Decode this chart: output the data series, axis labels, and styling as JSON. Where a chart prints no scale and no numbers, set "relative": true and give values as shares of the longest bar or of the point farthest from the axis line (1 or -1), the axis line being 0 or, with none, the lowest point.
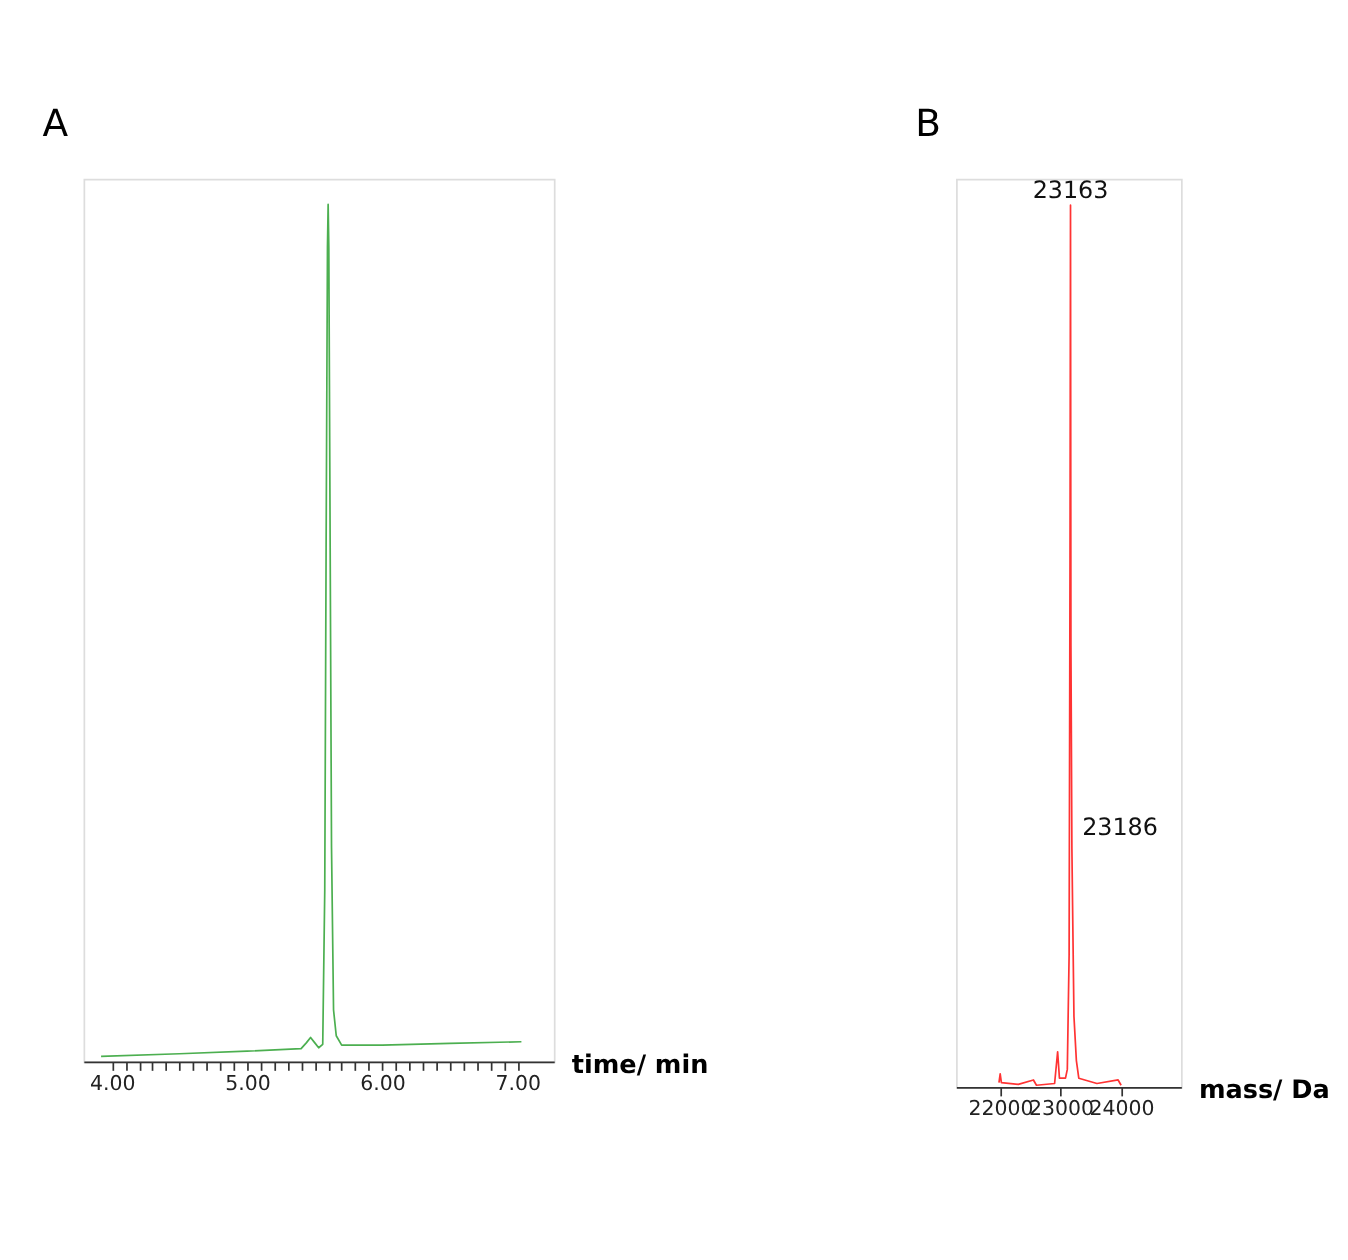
{
  "chart_data": [
    {
      "type": "line",
      "title": "A",
      "xlabel": "time/ min",
      "relative": true,
      "grid": false,
      "xlim": [
        3.79,
        7.27
      ],
      "xticks": [
        {
          "value": 4,
          "label": "4.00"
        },
        {
          "value": 4.1,
          "label": null
        },
        {
          "value": 4.2,
          "label": null
        },
        {
          "value": 4.3,
          "label": null
        },
        {
          "value": 4.4,
          "label": null
        },
        {
          "value": 4.5,
          "label": null
        },
        {
          "value": 4.6,
          "label": null
        },
        {
          "value": 4.7,
          "label": null
        },
        {
          "value": 4.8,
          "label": null
        },
        {
          "value": 4.9,
          "label": null
        },
        {
          "value": 5,
          "label": "5.00"
        },
        {
          "value": 5.1,
          "label": null
        },
        {
          "value": 5.2,
          "label": null
        },
        {
          "value": 5.3,
          "label": null
        },
        {
          "value": 5.4,
          "label": null
        },
        {
          "value": 5.5,
          "label": null
        },
        {
          "value": 5.6,
          "label": null
        },
        {
          "value": 5.7,
          "label": null
        },
        {
          "value": 5.8,
          "label": null
        },
        {
          "value": 5.9,
          "label": null
        },
        {
          "value": 6,
          "label": "6.00"
        },
        {
          "value": 6.1,
          "label": null
        },
        {
          "value": 6.2,
          "label": null
        },
        {
          "value": 6.3,
          "label": null
        },
        {
          "value": 6.4,
          "label": null
        },
        {
          "value": 6.5,
          "label": null
        },
        {
          "value": 6.6,
          "label": null
        },
        {
          "value": 6.7,
          "label": null
        },
        {
          "value": 6.8,
          "label": null
        },
        {
          "value": 6.9,
          "label": null
        },
        {
          "value": 7,
          "label": "7.00"
        }
      ],
      "series": [
        {
          "color": "#4caf50",
          "x": [
            3.92,
            4.5,
            5.0,
            5.4,
            5.44,
            5.47,
            5.5,
            5.53,
            5.56,
            5.575,
            5.585,
            5.595,
            5.6,
            5.605,
            5.615,
            5.625,
            5.64,
            5.66,
            5.7,
            6.0,
            6.5,
            7.03
          ],
          "values": [
            0.006,
            0.009,
            0.012,
            0.015,
            0.022,
            0.028,
            0.022,
            0.016,
            0.02,
            0.2,
            0.6,
            0.95,
            1.0,
            0.95,
            0.6,
            0.25,
            0.06,
            0.03,
            0.019,
            0.019,
            0.021,
            0.023
          ]
        }
      ]
    },
    {
      "type": "line",
      "title": "B",
      "xlabel": "mass/ Da",
      "relative": true,
      "grid": false,
      "xlim": [
        21270,
        24990
      ],
      "xticks": [
        22000,
        23000,
        24000
      ],
      "annotations": [
        {
          "text": "23163",
          "x": 23163,
          "y": 1
        },
        {
          "text": "23186",
          "x": 23186,
          "y": 0.27
        }
      ],
      "series": [
        {
          "color": "#ff3333",
          "x": [
            21980,
            22000,
            22020,
            22300,
            22550,
            22600,
            22900,
            22950,
            22980,
            23080,
            23110,
            23140,
            23155,
            23163,
            23170,
            23186,
            23200,
            23220,
            23260,
            23300,
            23600,
            23950,
            24000
          ],
          "values": [
            0.005,
            0.015,
            0.005,
            0.003,
            0.008,
            0.002,
            0.004,
            0.04,
            0.01,
            0.01,
            0.02,
            0.15,
            0.6,
            1.0,
            0.5,
            0.27,
            0.19,
            0.08,
            0.03,
            0.01,
            0.004,
            0.008,
            0.002
          ]
        }
      ]
    }
  ]
}
